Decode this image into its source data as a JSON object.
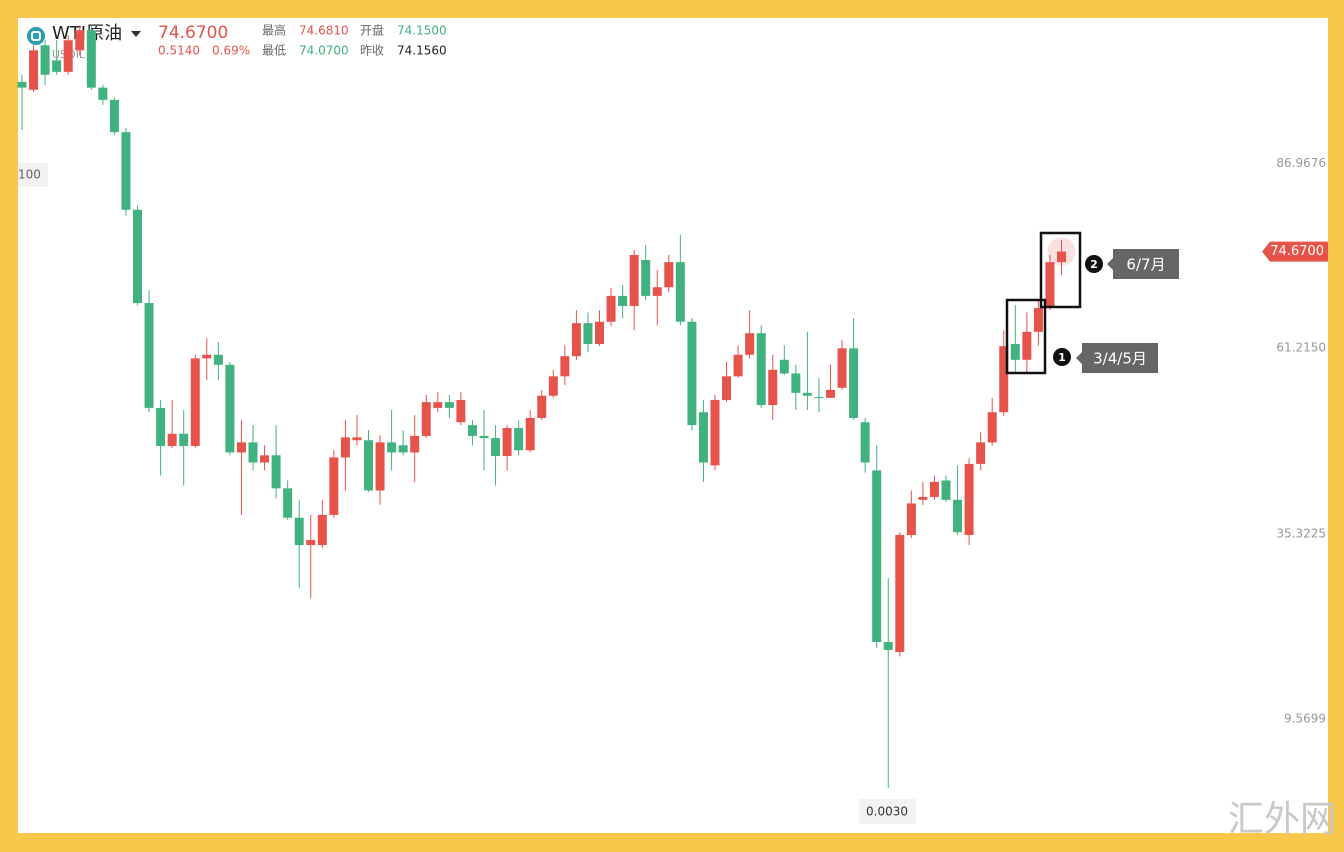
{
  "header": {
    "symbol": "WTI原油",
    "code": "USOIL",
    "price": "74.6700",
    "change": "0.5140",
    "change_pct": "0.69%",
    "stats": [
      {
        "label": "最高",
        "value": "74.6810",
        "color": "#e5534b"
      },
      {
        "label": "开盘",
        "value": "74.1500",
        "color": "#3fb27f"
      },
      {
        "label": "最低",
        "value": "74.0700",
        "color": "#3fb27f"
      },
      {
        "label": "昨收",
        "value": "74.1560",
        "color": "#222222"
      }
    ]
  },
  "watermark": "汇外网",
  "chart_data": {
    "type": "candlestick",
    "up_color": "#e5534b",
    "down_color": "#3fb27f",
    "open": [
      98.3,
      97.2,
      103.4,
      101.3,
      99.7,
      102.7,
      105.5,
      97.5,
      95.8,
      91.3,
      80.5,
      67.5,
      52.9,
      47.6,
      49.3,
      47.6,
      59.8,
      60.3,
      58.9,
      46.7,
      48.1,
      45.3,
      46.3,
      41.7,
      37.6,
      33.8,
      33.8,
      38.0,
      46.0,
      48.4,
      48.4,
      41.4,
      48.1,
      47.7,
      46.7,
      49.0,
      52.9,
      53.7,
      50.9,
      50.5,
      49.0,
      48.7,
      46.2,
      50.1,
      47.0,
      51.5,
      54.6,
      57.3,
      60.1,
      64.7,
      61.8,
      64.9,
      68.5,
      67.1,
      73.5,
      68.5,
      69.7,
      73.2,
      64.9,
      52.3,
      44.9,
      54.0,
      57.3,
      60.3,
      63.3,
      53.3,
      59.6,
      57.7,
      55.0,
      54.4,
      54.3,
      55.7,
      61.2,
      50.9,
      44.2,
      20.3,
      18.9,
      35.2,
      40.1,
      40.5,
      42.8,
      40.1,
      35.2,
      45.1,
      48.1,
      52.3,
      61.8,
      59.6,
      63.5,
      67.1,
      73.2
    ],
    "high": [
      99.3,
      103.4,
      104.1,
      104.1,
      104.8,
      106.2,
      106.2,
      97.9,
      96.1,
      91.9,
      81.1,
      69.3,
      54.0,
      54.0,
      52.6,
      60.3,
      62.6,
      62.1,
      59.3,
      51.2,
      50.5,
      47.7,
      50.5,
      42.8,
      40.1,
      38.0,
      40.1,
      47.0,
      51.2,
      51.9,
      49.8,
      49.1,
      52.6,
      49.8,
      51.9,
      54.7,
      55.1,
      54.7,
      55.1,
      51.2,
      52.6,
      50.5,
      50.5,
      51.2,
      52.6,
      55.4,
      58.2,
      61.6,
      66.5,
      66.2,
      66.5,
      69.6,
      70.0,
      74.9,
      75.6,
      72.1,
      74.2,
      77.0,
      65.4,
      54.0,
      54.7,
      59.3,
      61.6,
      66.5,
      64.4,
      60.3,
      61.6,
      58.9,
      63.5,
      57.1,
      58.9,
      62.4,
      65.4,
      51.5,
      47.7,
      29.2,
      35.6,
      41.4,
      42.6,
      43.5,
      43.5,
      44.9,
      45.9,
      49.5,
      54.3,
      63.7,
      67.2,
      66.2,
      67.9,
      74.2,
      76.3
    ],
    "low": [
      91.6,
      96.9,
      97.9,
      99.3,
      99.3,
      102.0,
      97.2,
      95.1,
      90.9,
      79.7,
      67.2,
      52.3,
      43.5,
      47.3,
      42.1,
      47.3,
      56.8,
      56.8,
      46.3,
      38.0,
      44.2,
      44.2,
      40.3,
      37.3,
      27.8,
      26.4,
      33.4,
      37.6,
      41.4,
      47.7,
      41.2,
      39.4,
      44.2,
      46.3,
      42.6,
      48.7,
      52.3,
      51.5,
      50.5,
      47.7,
      44.2,
      42.1,
      44.2,
      46.3,
      46.7,
      51.2,
      54.3,
      56.1,
      59.6,
      60.7,
      61.5,
      64.3,
      65.4,
      63.7,
      67.9,
      64.4,
      69.0,
      64.4,
      49.8,
      42.6,
      44.2,
      53.7,
      57.1,
      59.8,
      52.9,
      51.2,
      57.5,
      52.6,
      52.6,
      52.3,
      54.3,
      55.4,
      51.2,
      43.9,
      19.5,
      0.003,
      18.3,
      34.8,
      39.4,
      40.1,
      39.8,
      35.2,
      33.8,
      44.2,
      47.7,
      51.8,
      57.9,
      57.9,
      61.6,
      66.5,
      71.4
    ],
    "close": [
      97.5,
      102.7,
      99.3,
      99.7,
      104.1,
      105.5,
      97.5,
      95.8,
      91.3,
      80.5,
      67.5,
      52.9,
      47.6,
      49.3,
      47.6,
      59.8,
      60.3,
      58.9,
      46.7,
      48.1,
      45.3,
      46.3,
      41.7,
      37.6,
      33.8,
      34.5,
      38.0,
      46.0,
      48.8,
      48.8,
      41.4,
      48.1,
      46.7,
      46.7,
      49.0,
      53.7,
      53.7,
      52.9,
      54.0,
      49.0,
      48.7,
      46.2,
      50.1,
      47.0,
      51.5,
      54.6,
      57.3,
      60.1,
      64.7,
      61.8,
      64.9,
      68.5,
      67.1,
      74.2,
      68.5,
      69.7,
      73.2,
      64.9,
      50.5,
      45.3,
      54.0,
      57.3,
      60.3,
      63.3,
      53.3,
      58.2,
      57.7,
      55.0,
      54.6,
      54.3,
      55.4,
      61.2,
      51.5,
      45.3,
      20.3,
      19.2,
      35.2,
      39.6,
      40.5,
      42.6,
      40.1,
      35.6,
      45.1,
      48.1,
      52.3,
      61.5,
      59.6,
      63.5,
      66.8,
      73.2,
      74.67
    ],
    "ylim": [
      -6.3,
      107.2
    ],
    "yticks": [
      86.9676,
      {
        "value": 61.215,
        "label": "61.2150"
      },
      35.3225,
      9.5699
    ],
    "last_price": {
      "value": 74.67,
      "label": "74.6700"
    },
    "low_marker": {
      "value": 0.003,
      "label": "0.0030"
    },
    "left_marker": "100",
    "annotations": [
      {
        "number": "1",
        "label": "3/4/5月"
      },
      {
        "number": "2",
        "label": "6/7月"
      }
    ]
  }
}
